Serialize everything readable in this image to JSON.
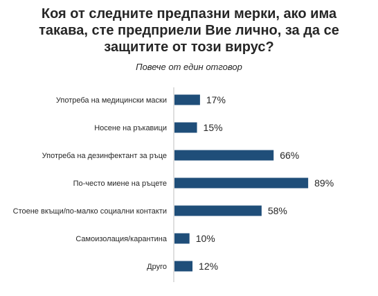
{
  "chart_data": {
    "type": "bar",
    "orientation": "horizontal",
    "title": "Коя от следните предпазни мерки, ако има такава,  сте предприели Вие лично, за да се защитите от този вирус?",
    "title_lines": [
      "Коя от следните предпазни мерки, ако има",
      "такава,  сте предприели Вие лично, за да се",
      "защитите от този вирус?"
    ],
    "subtitle": "Повече от един отговор",
    "categories": [
      "Употреба на медицински маски",
      "Носене на ръкавици",
      "Употреба на дезинфектант за ръце",
      "По-често миене на ръцете",
      "Стоене вкъщи/по-малко социални контакти",
      "Самоизолация/карантина",
      "Друго"
    ],
    "values": [
      17,
      15,
      66,
      89,
      58,
      10,
      12
    ],
    "value_labels": [
      "17%",
      "15%",
      "66%",
      "89%",
      "58%",
      "10%",
      "12%"
    ],
    "unit": "%",
    "xlim": [
      0,
      100
    ],
    "grid": false,
    "legend": "none",
    "bar_color": "#1f4e79"
  }
}
